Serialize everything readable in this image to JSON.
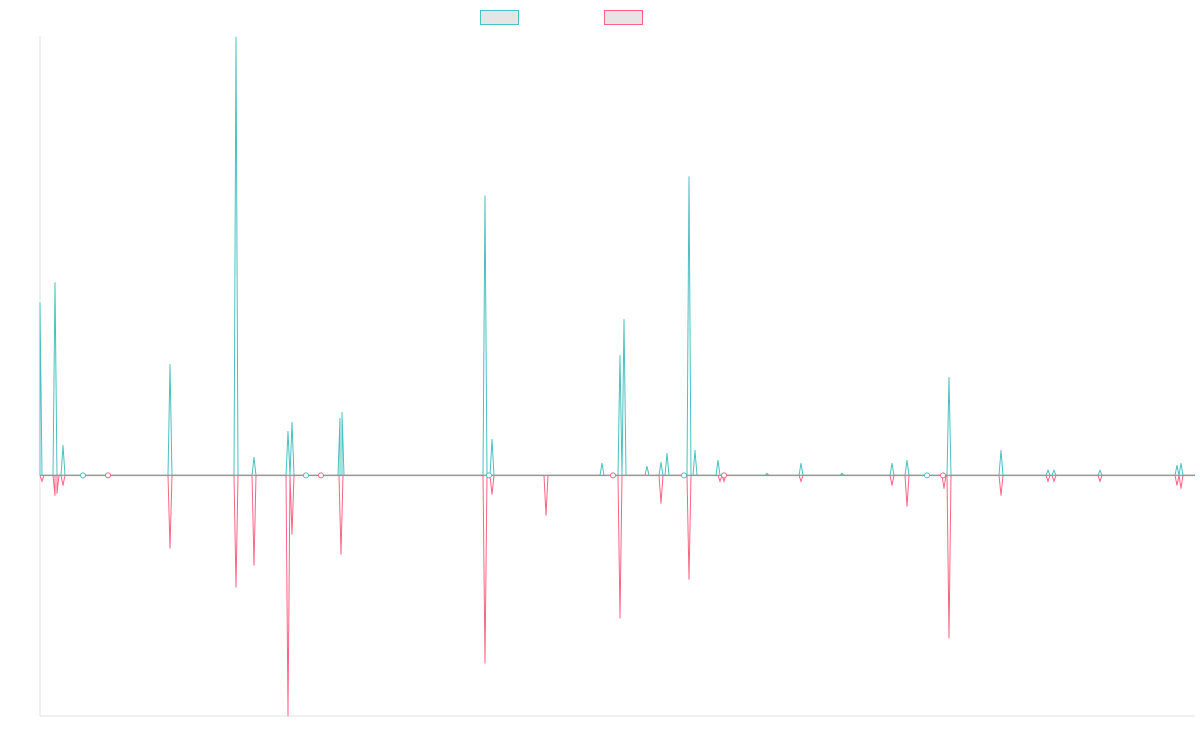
{
  "chart_data": {
    "type": "line",
    "title": "",
    "xlabel": "",
    "ylabel": "",
    "xlim": [
      0,
      1155
    ],
    "ylim": [
      -241,
      440
    ],
    "grid": false,
    "legend_placement": "top-center",
    "series": [
      {
        "name": "",
        "color": "#4bc0c0",
        "spikes": [
          [
            0,
            173
          ],
          [
            15,
            193
          ],
          [
            23,
            30
          ],
          [
            130,
            111
          ],
          [
            196,
            439
          ],
          [
            214,
            18
          ],
          [
            248,
            44
          ],
          [
            252,
            53
          ],
          [
            300,
            57
          ],
          [
            302,
            63
          ],
          [
            445,
            280
          ],
          [
            452,
            36
          ],
          [
            562,
            12
          ],
          [
            580,
            120
          ],
          [
            584,
            156
          ],
          [
            607,
            9
          ],
          [
            621,
            13
          ],
          [
            627,
            22
          ],
          [
            649,
            299
          ],
          [
            655,
            25
          ],
          [
            678,
            15
          ],
          [
            727,
            2
          ],
          [
            761,
            12
          ],
          [
            802,
            2
          ],
          [
            852,
            12
          ],
          [
            867,
            15
          ],
          [
            909,
            98
          ],
          [
            961,
            25
          ],
          [
            1008,
            5
          ],
          [
            1014,
            5
          ],
          [
            1060,
            5
          ],
          [
            1137,
            10
          ],
          [
            1141,
            12
          ]
        ]
      },
      {
        "name": "",
        "color": "#ff6384",
        "spikes": [
          [
            2,
            -6
          ],
          [
            15,
            -20
          ],
          [
            17,
            -18
          ],
          [
            23,
            -10
          ],
          [
            130,
            -73
          ],
          [
            196,
            -112
          ],
          [
            214,
            -90
          ],
          [
            248,
            -241
          ],
          [
            252,
            -59
          ],
          [
            301,
            -79
          ],
          [
            445,
            -188
          ],
          [
            452,
            -19
          ],
          [
            506,
            -40
          ],
          [
            580,
            -143
          ],
          [
            621,
            -28
          ],
          [
            649,
            -104
          ],
          [
            680,
            -6
          ],
          [
            684,
            -6
          ],
          [
            761,
            -6
          ],
          [
            852,
            -10
          ],
          [
            867,
            -31
          ],
          [
            904,
            -13
          ],
          [
            909,
            -163
          ],
          [
            961,
            -20
          ],
          [
            1008,
            -6
          ],
          [
            1014,
            -6
          ],
          [
            1060,
            -6
          ],
          [
            1137,
            -10
          ],
          [
            1141,
            -13
          ]
        ]
      }
    ],
    "zero_markers": [
      43,
      68,
      266,
      281,
      449,
      573,
      644,
      684,
      887,
      903
    ]
  }
}
